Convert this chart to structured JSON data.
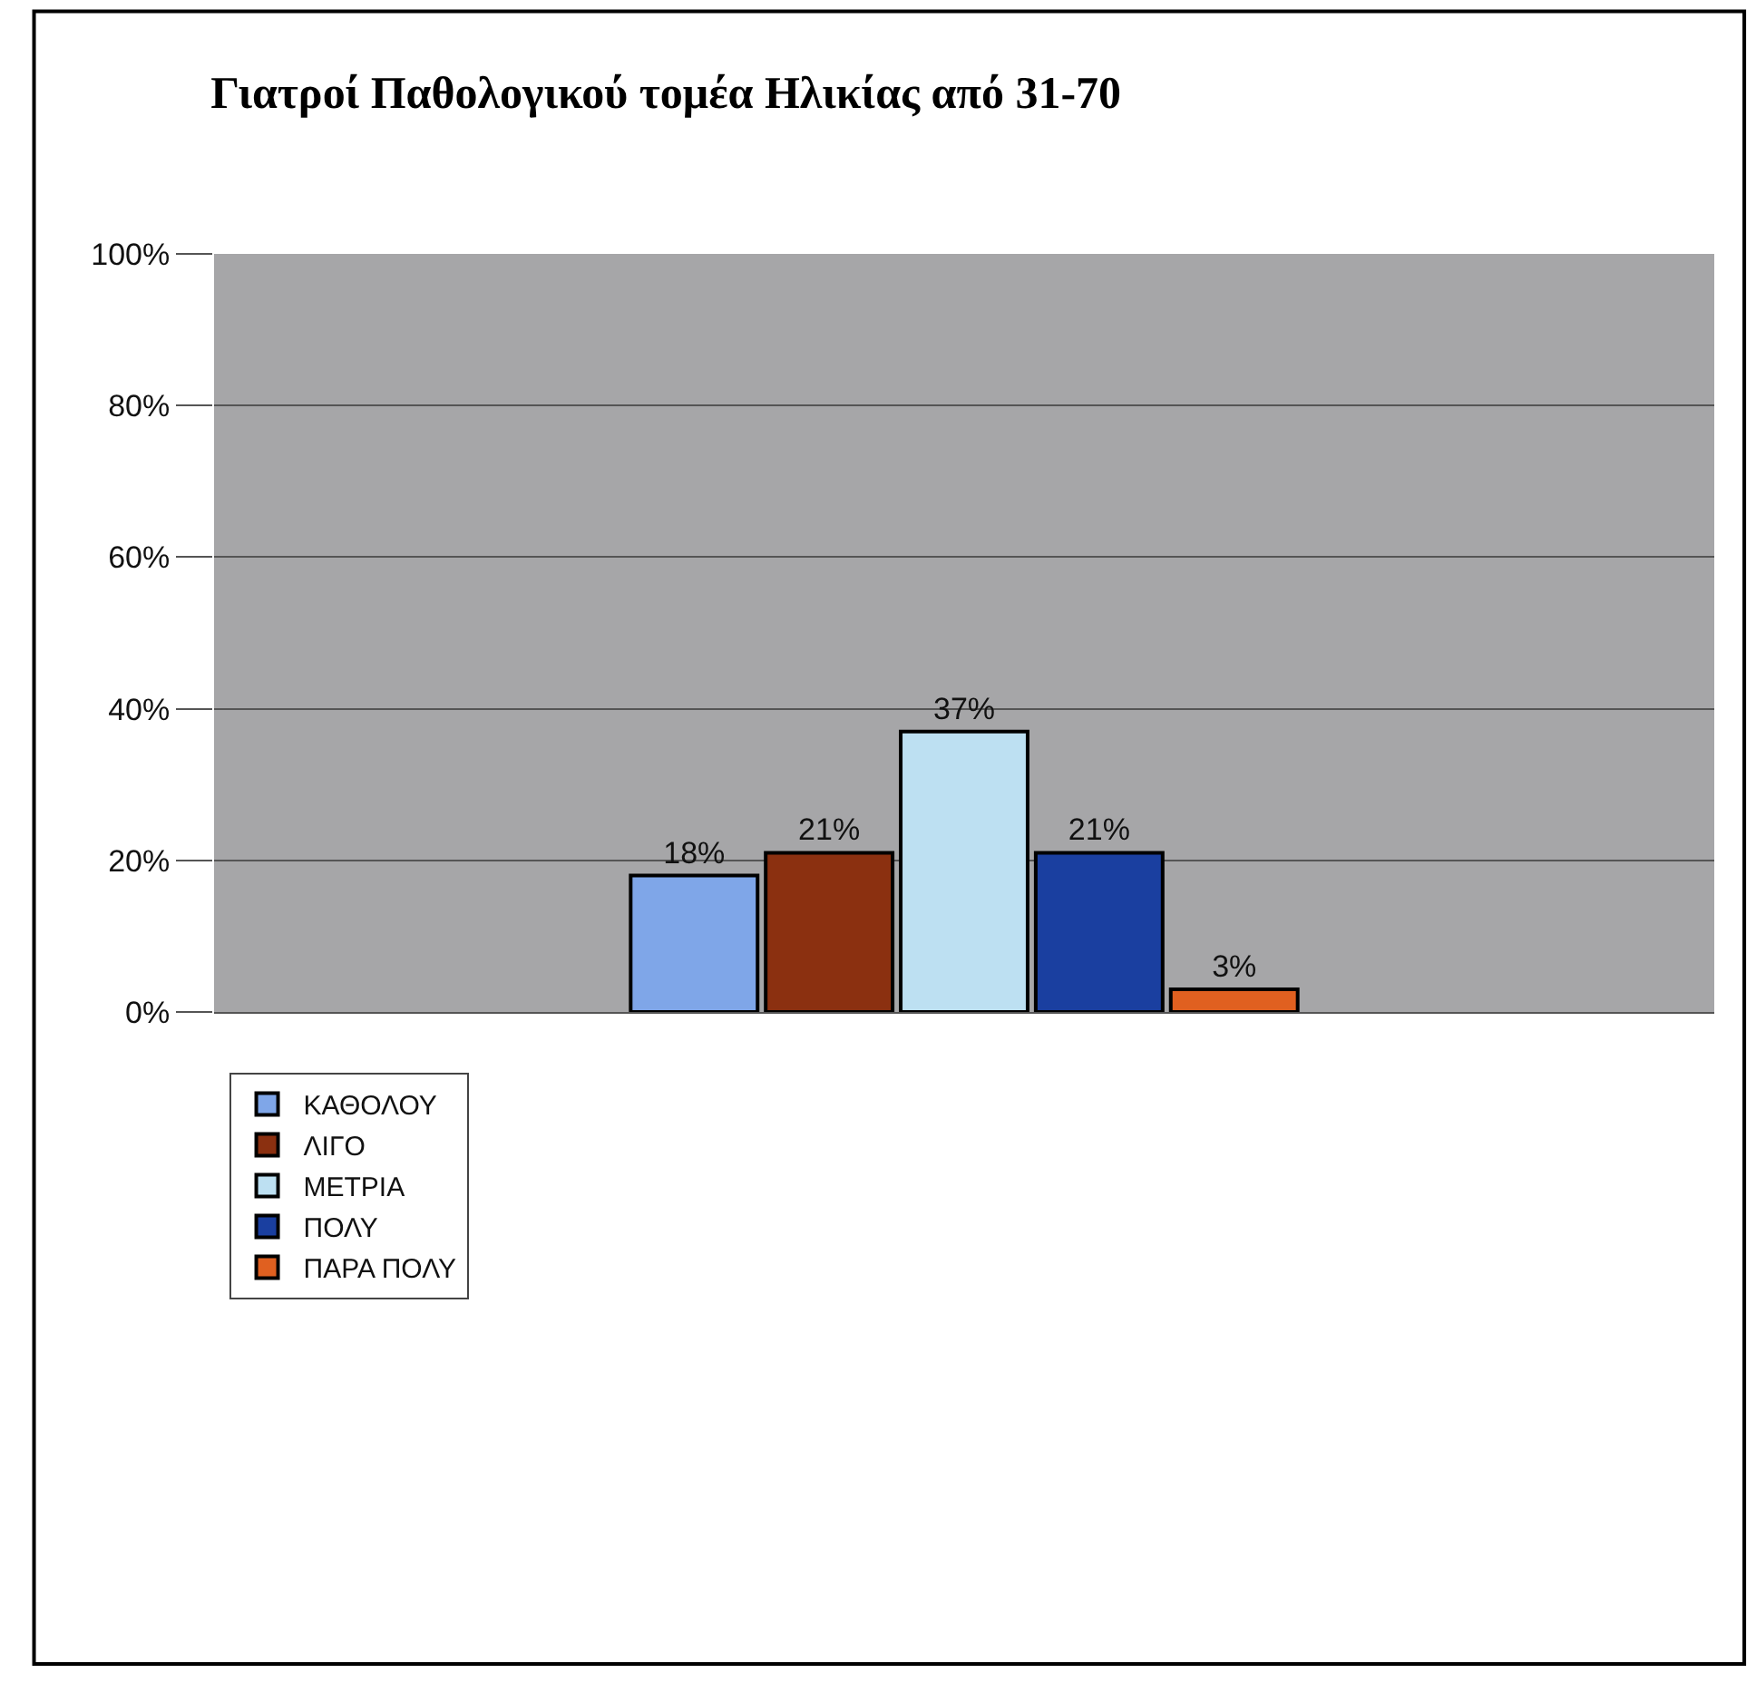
{
  "chart_data": {
    "type": "bar",
    "title": "Γιατροί Παθολογικού τομέα Ηλικίας από 31-70",
    "categories": [
      null
    ],
    "series": [
      {
        "name": "ΚΑΘΟΛΟΥ",
        "color": "#7fa6e8",
        "values": [
          18
        ],
        "value_labels": [
          "18%"
        ]
      },
      {
        "name": "ΛΙΓΟ",
        "color": "#8b3010",
        "values": [
          21
        ],
        "value_labels": [
          "21%"
        ]
      },
      {
        "name": "ΜΕΤΡΙΑ",
        "color": "#bde0f2",
        "values": [
          37
        ],
        "value_labels": [
          "37%"
        ]
      },
      {
        "name": "ΠΟΛΥ",
        "color": "#1a3fa0",
        "values": [
          21
        ],
        "value_labels": [
          "21%"
        ]
      },
      {
        "name": "ΠΑΡΑ ΠΟΛΥ",
        "color": "#e06020",
        "values": [
          3
        ],
        "value_labels": [
          "3%"
        ]
      }
    ],
    "ylim": [
      0,
      100
    ],
    "yticks": [
      {
        "value": 0,
        "label": "0%"
      },
      {
        "value": 20,
        "label": "20%"
      },
      {
        "value": 40,
        "label": "40%"
      },
      {
        "value": 60,
        "label": "60%"
      },
      {
        "value": 80,
        "label": "80%"
      },
      {
        "value": 100,
        "label": "100%"
      }
    ],
    "grid": "y",
    "legend": "bottom left"
  }
}
